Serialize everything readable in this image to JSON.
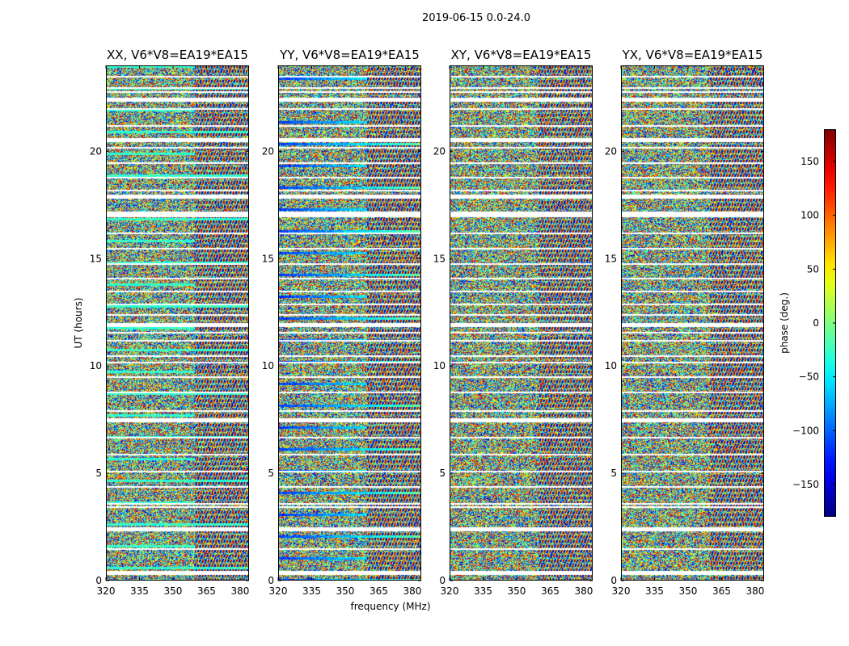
{
  "chart_data": {
    "type": "heatmap",
    "title": "2019-06-15 0.0-24.0",
    "xlabel": "frequency (MHz)",
    "ylabel": "UT (hours)",
    "xlim": [
      320,
      384
    ],
    "ylim": [
      0,
      24
    ],
    "x_ticks": [
      320,
      335,
      350,
      365,
      380
    ],
    "y_ticks": [
      0,
      5,
      10,
      15,
      20
    ],
    "panels": [
      {
        "title": "XX, V6*V8=EA19*EA15",
        "polarization": "XX"
      },
      {
        "title": "YY, V6*V8=EA19*EA15",
        "polarization": "YY"
      },
      {
        "title": "XY, V6*V8=EA19*EA15",
        "polarization": "XY"
      },
      {
        "title": "YX, V6*V8=EA19*EA15",
        "polarization": "YX"
      }
    ],
    "flagged_gaps_hours": [
      0.45,
      1.5,
      2.5,
      3.45,
      3.6,
      4.4,
      5.1,
      5.9,
      6.7,
      7.55,
      7.95,
      8.8,
      9.5,
      10.2,
      10.5,
      11.2,
      11.6,
      12.0,
      12.4,
      12.9,
      13.5,
      14.1,
      14.8,
      15.5,
      16.2,
      17.0,
      17.2,
      18.0,
      18.2,
      18.8,
      19.5,
      20.2,
      20.6,
      21.2,
      22.0,
      22.5,
      22.8,
      23.0,
      23.5
    ],
    "colorbar": {
      "label": "phase (deg.)",
      "range": [
        -180,
        180
      ],
      "ticks": [
        150,
        100,
        50,
        0,
        -50,
        -100,
        -150
      ],
      "tick_labels": [
        "150",
        "100",
        "50",
        "0",
        "−50",
        "−100",
        "−150"
      ],
      "colormap": "jet"
    }
  }
}
